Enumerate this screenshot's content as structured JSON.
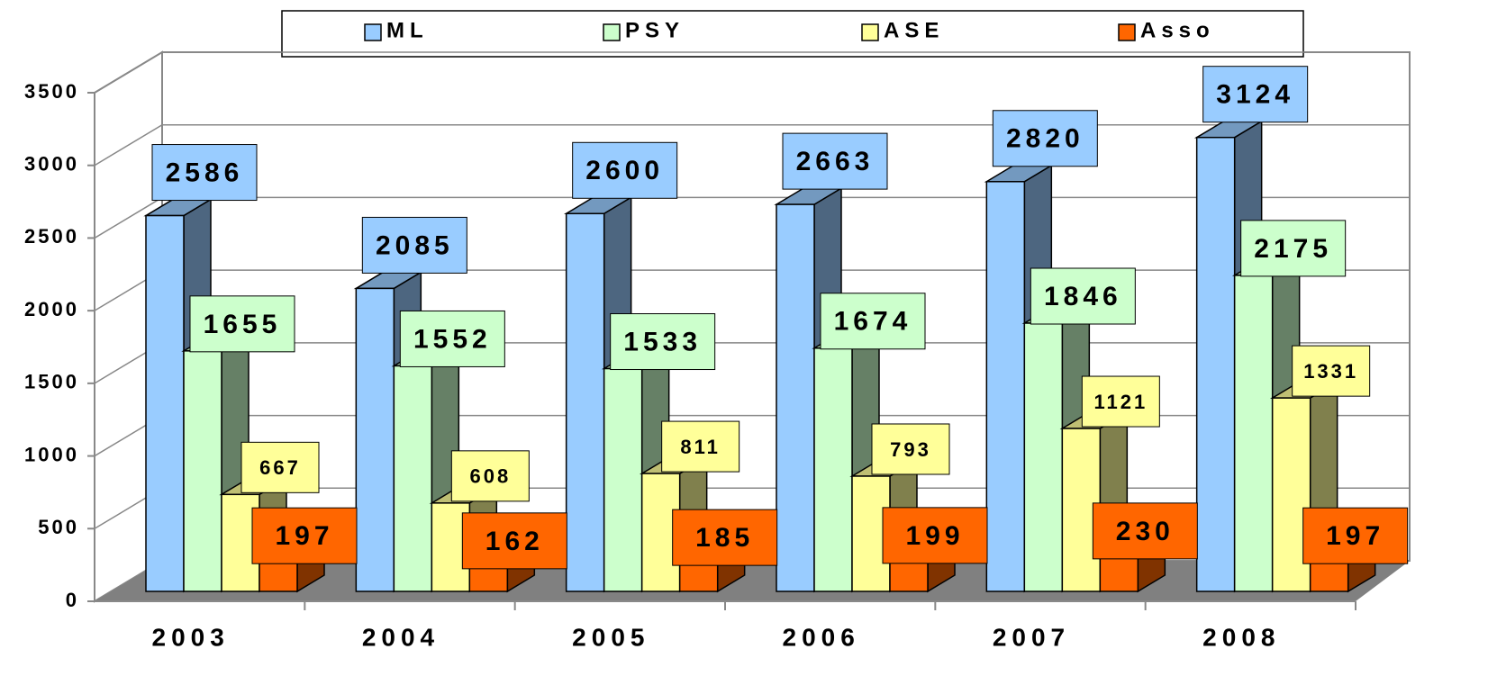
{
  "chart_data": {
    "type": "bar",
    "categories": [
      "2003",
      "2004",
      "2005",
      "2006",
      "2007",
      "2008"
    ],
    "series": [
      {
        "name": "ML",
        "color": "#99ccff",
        "values": [
          2586,
          2085,
          2600,
          2663,
          2820,
          3124
        ]
      },
      {
        "name": "PSY",
        "color": "#ccffcc",
        "values": [
          1655,
          1552,
          1533,
          1674,
          1846,
          2175
        ]
      },
      {
        "name": "ASE",
        "color": "#ffff99",
        "values": [
          667,
          608,
          811,
          793,
          1121,
          1331
        ]
      },
      {
        "name": "Asso",
        "color": "#ff6600",
        "values": [
          197,
          162,
          185,
          199,
          230,
          197
        ]
      }
    ],
    "ylim": [
      0,
      3500
    ],
    "yticks": [
      0,
      500,
      1000,
      1500,
      2000,
      2500,
      3000,
      3500
    ],
    "grid": true,
    "legend": "top"
  }
}
